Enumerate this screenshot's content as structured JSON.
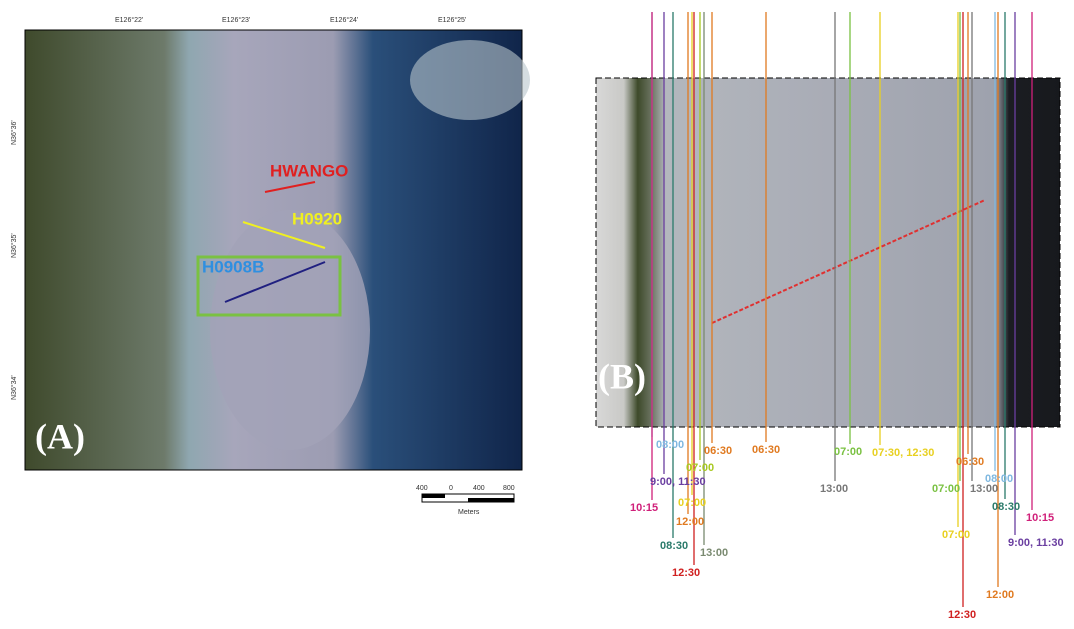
{
  "panel_a": {
    "label": "(A)",
    "top_ticks": [
      "E126°22'",
      "E126°23'",
      "E126°24'",
      "E126°25'"
    ],
    "left_ticks": [
      "N36°36'",
      "N36°35'",
      "N36°34'"
    ],
    "sites": [
      "HWANGO",
      "H0920",
      "H0908B"
    ],
    "scale_ticks": [
      "400",
      "0",
      "400",
      "800"
    ],
    "scale_unit": "Meters"
  },
  "panel_b": {
    "label": "(B)",
    "times": [
      "08:00",
      "06:30",
      "06:30",
      "07:00",
      "9:00, 11:30",
      "10:15",
      "07:00",
      "12:00",
      "08:30",
      "13:00",
      "12:30",
      "07:00",
      "07:30, 12:30",
      "13:00",
      "06:30",
      "08:00",
      "07:00",
      "13:00",
      "08:30",
      "10:15",
      "07:00",
      "9:00, 11:30",
      "12:00",
      "12:30"
    ]
  }
}
